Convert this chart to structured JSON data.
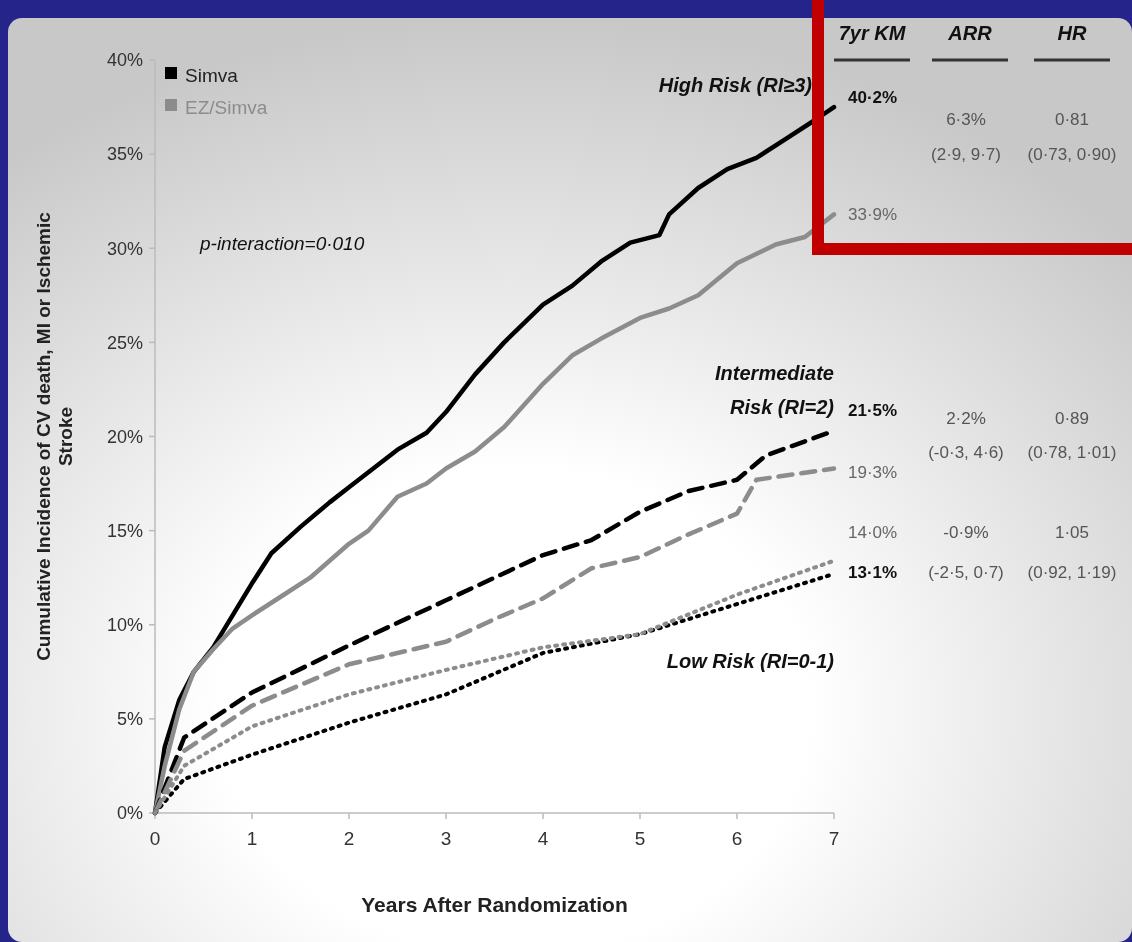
{
  "chart_data": {
    "type": "line",
    "xlabel": "Years After Randomization",
    "ylabel": "Cumulative Incidence of CV death, MI or Ischemic Stroke",
    "xlim": [
      0,
      7
    ],
    "xticks": [
      0,
      1,
      2,
      3,
      4,
      5,
      6,
      7
    ],
    "ylim": [
      0,
      40
    ],
    "yticks": [
      {
        "value": 0,
        "label": "0%"
      },
      {
        "value": 5,
        "label": "5%"
      },
      {
        "value": 10,
        "label": "10%"
      },
      {
        "value": 15,
        "label": "15%"
      },
      {
        "value": 20,
        "label": "20%"
      },
      {
        "value": 25,
        "label": "25%"
      },
      {
        "value": 30,
        "label": "30%"
      },
      {
        "value": 35,
        "label": "35%"
      },
      {
        "value": 40,
        "label": "40%"
      }
    ],
    "grid": false,
    "legend": "top left",
    "series": [
      {
        "name": "Simva",
        "color": "#000000",
        "line_style": "solid",
        "x": [
          0,
          0.1,
          0.25,
          0.4,
          0.6,
          0.8,
          1.0,
          1.2,
          1.5,
          1.8,
          2.0,
          2.3,
          2.5,
          2.8,
          3.0,
          3.3,
          3.6,
          4.0,
          4.3,
          4.6,
          4.9,
          5.2,
          5.3,
          5.6,
          5.9,
          6.2,
          6.5,
          6.8,
          7.0
        ],
        "values": [
          0,
          3.5,
          6,
          7.5,
          8.8,
          10.5,
          12.2,
          13.8,
          15.2,
          16.5,
          17.3,
          18.5,
          19.3,
          20.2,
          21.3,
          23.3,
          25,
          27,
          28,
          29.3,
          30.3,
          30.7,
          31.8,
          33.2,
          34.2,
          34.8,
          35.8,
          36.8,
          37.5
        ]
      },
      {
        "name": "EZ/Simva",
        "color": "#8c8c8c",
        "line_style": "solid",
        "x": [
          0,
          0.1,
          0.25,
          0.4,
          0.6,
          0.8,
          1.0,
          1.3,
          1.6,
          2.0,
          2.2,
          2.5,
          2.8,
          3.0,
          3.3,
          3.6,
          4.0,
          4.3,
          4.6,
          5.0,
          5.3,
          5.6,
          6.0,
          6.4,
          6.7,
          7.0
        ],
        "values": [
          0,
          2.5,
          5.5,
          7.5,
          8.7,
          9.8,
          10.5,
          11.5,
          12.5,
          14.3,
          15,
          16.8,
          17.5,
          18.3,
          19.2,
          20.5,
          22.8,
          24.3,
          25.2,
          26.3,
          26.8,
          27.5,
          29.2,
          30.2,
          30.6,
          31.8
        ]
      },
      {
        "color": "#000000",
        "line_style": "dashed",
        "x": [
          0,
          0.3,
          1,
          2,
          3,
          4,
          4.5,
          5,
          5.5,
          6,
          6.3,
          7
        ],
        "values": [
          0,
          4,
          6.4,
          8.9,
          11.3,
          13.7,
          14.5,
          16,
          17.1,
          17.7,
          19,
          20.3
        ]
      },
      {
        "color": "#8c8c8c",
        "line_style": "dashed",
        "x": [
          0,
          0.3,
          1,
          2,
          2.5,
          3,
          3.5,
          4,
          4.5,
          5,
          5.5,
          6,
          6.2,
          7
        ],
        "values": [
          0,
          3.3,
          5.7,
          7.9,
          8.5,
          9.1,
          10.3,
          11.4,
          13,
          13.6,
          14.8,
          15.9,
          17.7,
          18.3
        ]
      },
      {
        "color": "#000000",
        "line_style": "dotted",
        "x": [
          0,
          0.3,
          1,
          2,
          3,
          4,
          5,
          6,
          7
        ],
        "values": [
          0,
          1.8,
          3.1,
          4.8,
          6.3,
          8.5,
          9.5,
          11.1,
          12.7
        ]
      },
      {
        "color": "#8c8c8c",
        "line_style": "dotted",
        "x": [
          0,
          0.3,
          1,
          2,
          3,
          4,
          5,
          6,
          7
        ],
        "values": [
          0,
          2.5,
          4.6,
          6.3,
          7.6,
          8.8,
          9.5,
          11.6,
          13.4
        ]
      }
    ],
    "annotations": [
      "p-interaction=0·010",
      "High Risk (RI≥3)",
      "Intermediate Risk (RI=2)",
      "Low Risk (RI=0-1)",
      "7yr KM",
      "ARR",
      "HR",
      "40·2%",
      "33·9%",
      "6·3%",
      "(2·9, 9·7)",
      "0·81",
      "(0·73, 0·90)",
      "21·5%",
      "19·3%",
      "2·2%",
      "(-0·3, 4·6)",
      "0·89",
      "(0·78, 1·01)",
      "14·0%",
      "13·1%",
      "-0·9%",
      "(-2·5, 0·7)",
      "1·05",
      "(0·92, 1·19)"
    ]
  }
}
